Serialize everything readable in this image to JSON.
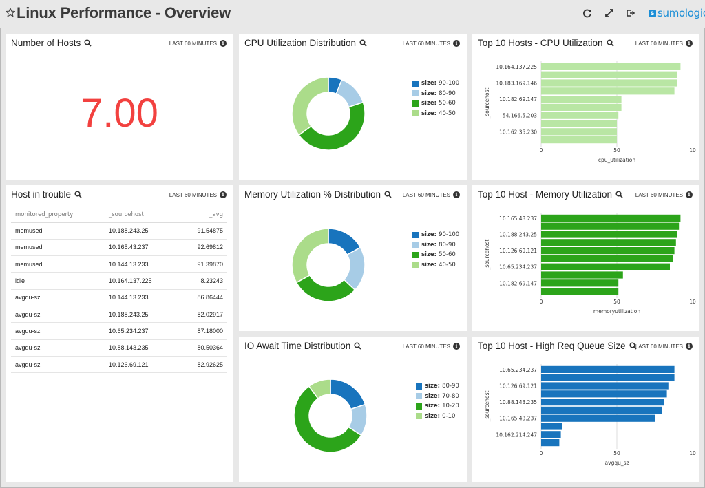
{
  "header": {
    "title": "Linux Performance - Overview",
    "logo_text": "sumologic",
    "logo_badge": "s",
    "icons": [
      "star-icon",
      "refresh-icon",
      "fullscreen-icon",
      "share-icon"
    ]
  },
  "colors": {
    "accent": "#1b8ed6",
    "big_number": "#f2413f",
    "dark_blue": "#1874bd",
    "light_blue": "#a7cce6",
    "dark_green": "#2ca41a",
    "light_green": "#abdc8a"
  },
  "panels": {
    "hosts": {
      "title": "Number of Hosts",
      "range": "LAST 60 MINUTES",
      "value": "7.00"
    },
    "cpu_dist": {
      "title": "CPU Utilization Distribution",
      "range": "LAST 60 MINUTES"
    },
    "cpu_top": {
      "title": "Top 10 Hosts - CPU Utilization",
      "range": "LAST 60 MINUTES"
    },
    "trouble": {
      "title": "Host in trouble",
      "range": "LAST 60 MINUTES",
      "columns": [
        "monitored_property",
        "_sourcehost",
        "_avg"
      ],
      "rows": [
        [
          "memused",
          "10.188.243.25",
          "91.54875"
        ],
        [
          "memused",
          "10.165.43.237",
          "92.69812"
        ],
        [
          "memused",
          "10.144.13.233",
          "91.39870"
        ],
        [
          "idle",
          "10.164.137.225",
          "8.23243"
        ],
        [
          "avgqu-sz",
          "10.144.13.233",
          "86.86444"
        ],
        [
          "avgqu-sz",
          "10.188.243.25",
          "82.02917"
        ],
        [
          "avgqu-sz",
          "10.65.234.237",
          "87.18000"
        ],
        [
          "avgqu-sz",
          "10.88.143.235",
          "80.50364"
        ],
        [
          "avgqu-sz",
          "10.126.69.121",
          "82.92625"
        ]
      ]
    },
    "mem_dist": {
      "title": "Memory Utilization % Distribution",
      "range": "LAST 60 MINUTES"
    },
    "mem_top": {
      "title": "Top 10 Host - Memory Utilization",
      "range": "LAST 60 MINUTES"
    },
    "io_dist": {
      "title": "IO Await Time Distribution",
      "range": "LAST 60 MINUTES"
    },
    "queue_top": {
      "title": "Top 10 Host - High Req Queue Size",
      "range": "LAST 60 MINUTES"
    }
  },
  "chart_data": [
    {
      "id": "cpu_dist",
      "type": "pie",
      "legend_prefix": "size:",
      "categories": [
        "90-100",
        "80-90",
        "50-60",
        "40-50"
      ],
      "values": [
        6,
        14,
        45,
        35
      ],
      "colors": [
        "#1874bd",
        "#a7cce6",
        "#2ca41a",
        "#abdc8a"
      ],
      "legend": "right"
    },
    {
      "id": "mem_dist",
      "type": "pie",
      "legend_prefix": "size:",
      "categories": [
        "90-100",
        "80-90",
        "50-60",
        "40-50"
      ],
      "values": [
        17,
        20,
        30,
        33
      ],
      "colors": [
        "#1874bd",
        "#a7cce6",
        "#2ca41a",
        "#abdc8a"
      ],
      "legend": "right"
    },
    {
      "id": "io_dist",
      "type": "pie",
      "legend_prefix": "size:",
      "categories": [
        "80-90",
        "70-80",
        "10-20",
        "0-10"
      ],
      "values": [
        20,
        14,
        56,
        10
      ],
      "colors": [
        "#1874bd",
        "#a7cce6",
        "#2ca41a",
        "#abdc8a"
      ],
      "legend": "right"
    },
    {
      "id": "cpu_top",
      "type": "bar",
      "orientation": "horizontal",
      "categories": [
        "10.164.137.225",
        "",
        "10.183.169.146",
        "",
        "10.182.69.147",
        "",
        "54.166.5.203",
        "",
        "10.162.35.230",
        ""
      ],
      "values": [
        92,
        90,
        90,
        88,
        53,
        53,
        51,
        50,
        50,
        50
      ],
      "xlabel": "cpu_utilization",
      "ylabel": "_sourcehost",
      "xticks": [
        "0",
        "50",
        "10"
      ],
      "xlim": [
        0,
        100
      ],
      "color": "#b9e6a4"
    },
    {
      "id": "mem_top",
      "type": "bar",
      "orientation": "horizontal",
      "categories": [
        "10.165.43.237",
        "",
        "10.188.243.25",
        "",
        "10.126.69.121",
        "",
        "10.65.234.237",
        "",
        "10.182.69.147",
        ""
      ],
      "values": [
        92,
        91,
        90,
        89,
        88,
        87,
        85,
        54,
        51,
        51
      ],
      "xlabel": "memoryutilization",
      "ylabel": "_sourcehost",
      "xticks": [
        "0",
        "50",
        "10"
      ],
      "xlim": [
        0,
        100
      ],
      "color": "#2ca41a"
    },
    {
      "id": "queue_top",
      "type": "bar",
      "orientation": "horizontal",
      "categories": [
        "10.65.234.237",
        "",
        "10.126.69.121",
        "",
        "10.88.143.235",
        "",
        "10.165.43.237",
        "",
        "10.162.214.247",
        ""
      ],
      "values": [
        88,
        88,
        84,
        83,
        81,
        80,
        75,
        14,
        13,
        12
      ],
      "xlabel": "avgqu_sz",
      "ylabel": "_sourcehost",
      "xticks": [
        "0",
        "50",
        "10"
      ],
      "xlim": [
        0,
        100
      ],
      "color": "#1874bd"
    }
  ]
}
